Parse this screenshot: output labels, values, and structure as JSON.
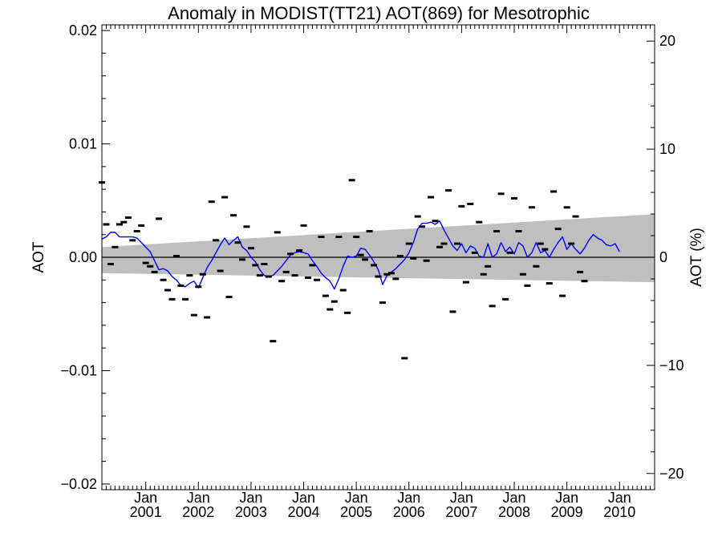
{
  "chart_data": {
    "type": "scatter",
    "title": "Anomaly in MODIST(TT21) AOT(869) for Mesotrophic",
    "ylabel": "AOT",
    "ylabel_right": "AOT (%)",
    "ylim": [
      -0.0205,
      0.0205
    ],
    "ylim_right": [
      -21.5,
      21.5
    ],
    "xlim": [
      "2000-03-01",
      "2010-09-01"
    ],
    "y_ticks": [
      "0.02",
      "0.01",
      "0.00",
      "−0.01",
      "−0.02"
    ],
    "y_tick_values": [
      0.02,
      0.01,
      0.0,
      -0.01,
      -0.02
    ],
    "y_right_ticks": [
      "20",
      "10",
      "0",
      "−10",
      "−20"
    ],
    "y_right_tick_values": [
      20,
      10,
      0,
      -10,
      -20
    ],
    "x_tick_labels": [
      {
        "month": "Jan",
        "year": "2001",
        "date": "2001-01-01"
      },
      {
        "month": "Jan",
        "year": "2002",
        "date": "2002-01-01"
      },
      {
        "month": "Jan",
        "year": "2003",
        "date": "2003-01-01"
      },
      {
        "month": "Jan",
        "year": "2004",
        "date": "2004-01-01"
      },
      {
        "month": "Jan",
        "year": "2005",
        "date": "2005-01-01"
      },
      {
        "month": "Jan",
        "year": "2006",
        "date": "2006-01-01"
      },
      {
        "month": "Jan",
        "year": "2007",
        "date": "2007-01-01"
      },
      {
        "month": "Jan",
        "year": "2008",
        "date": "2008-01-01"
      },
      {
        "month": "Jan",
        "year": "2009",
        "date": "2009-01-01"
      },
      {
        "month": "Jan",
        "year": "2010",
        "date": "2010-01-01"
      }
    ],
    "zero_line": true,
    "confidence_band": {
      "x": [
        "2000-03-01",
        "2010-09-01"
      ],
      "upper": [
        0.0009,
        0.0038
      ],
      "lower": [
        -0.0014,
        -0.0022
      ]
    },
    "series": [
      {
        "type": "scatter",
        "marker": "dash",
        "color": "#000000",
        "start": "2000-03",
        "values": [
          0.0066,
          0.0029,
          -0.0006,
          0.0009,
          0.0029,
          0.0031,
          0.0035,
          0.0015,
          0.0023,
          0.0028,
          -0.0005,
          -0.0008,
          -0.0013,
          0.0034,
          -0.002,
          -0.0029,
          -0.0037,
          0.0001,
          -0.0025,
          -0.0037,
          -0.0016,
          -0.0051,
          -0.0026,
          -0.0015,
          -0.0053,
          0.0049,
          0.0015,
          -0.0012,
          0.0053,
          -0.0035,
          0.0037,
          0.0013,
          -0.0002,
          0.0027,
          0.0008,
          -0.0007,
          -0.0016,
          -0.0006,
          -0.0017,
          -0.0074,
          0.0022,
          -0.0021,
          -0.0013,
          0.0003,
          -0.0016,
          0.0006,
          0.0028,
          -0.0018,
          -0.0007,
          -0.002,
          0.0018,
          -0.0034,
          -0.0046,
          -0.0039,
          0.0018,
          -0.0029,
          -0.0049,
          0.0068,
          0.0018,
          0.0002,
          -0.0002,
          0.0023,
          -0.0007,
          -0.0017,
          -0.004,
          -0.0015,
          -0.0014,
          -0.0019,
          0.0001,
          -0.0089,
          0.0012,
          -0.0001,
          0.0036,
          0.0027,
          -0.0003,
          0.0053,
          0.0032,
          0.0009,
          0.0012,
          0.0059,
          -0.0048,
          0.0012,
          0.0045,
          -0.0022,
          0.0047,
          0.0004,
          0.0031,
          -0.0015,
          -0.0008,
          -0.0043,
          0.0023,
          0.0056,
          -0.0037,
          0.0004,
          0.0052,
          0.0023,
          -0.0015,
          -0.0025,
          0.0044,
          -0.0008,
          0.0012,
          0.0007,
          -0.0023,
          0.0058,
          0.0025,
          -0.0034,
          0.0044,
          0.0012,
          0.0036,
          -0.0013,
          -0.0021
        ]
      },
      {
        "type": "line",
        "color": "#0000ff",
        "start": "2000-03",
        "values": [
          0.0016,
          0.0018,
          0.0022,
          0.0022,
          0.0018,
          0.0018,
          0.0018,
          0.0018,
          0.0017,
          0.0013,
          0.0009,
          0.0005,
          -0.0003,
          -0.0011,
          -0.001,
          -0.0012,
          -0.0017,
          -0.002,
          -0.0025,
          -0.0026,
          -0.0023,
          -0.0021,
          -0.0027,
          -0.0018,
          -0.0009,
          -0.0003,
          0.0004,
          0.0011,
          0.0017,
          0.0011,
          0.0015,
          0.0018,
          0.0009,
          0.0006,
          0.0,
          -0.0004,
          -0.0011,
          -0.0016,
          -0.0017,
          -0.0016,
          -0.0012,
          -0.0008,
          -0.0003,
          0.0002,
          0.0004,
          0.0005,
          0.0004,
          0.0003,
          -0.0003,
          -0.0008,
          -0.0014,
          -0.0018,
          -0.0021,
          -0.0028,
          -0.0019,
          -0.0008,
          0.0001,
          0.0,
          0.0001,
          0.0008,
          0.0007,
          0.0002,
          -0.0004,
          -0.0011,
          -0.0024,
          -0.0016,
          -0.0013,
          -0.001,
          -0.0006,
          -0.0002,
          0.0004,
          0.0013,
          0.0025,
          0.003,
          0.003,
          0.0031,
          0.0029,
          0.0032,
          0.0024,
          0.0017,
          0.001,
          0.0006,
          0.0012,
          0.0004,
          0.001,
          0.0008,
          0.0001,
          0.0,
          0.0012,
          0.0,
          0.0003,
          0.0013,
          0.0005,
          0.0009,
          0.0003,
          0.0013,
          0.001,
          0.0,
          0.0004,
          0.0013,
          0.0004,
          0.0006,
          0.0,
          0.0007,
          0.0013,
          0.0018,
          0.0007,
          0.0012,
          0.0007,
          0.0003,
          0.0008,
          0.0015,
          0.002,
          0.0017,
          0.0015,
          0.0011,
          0.001,
          0.0012,
          0.0005
        ]
      }
    ]
  }
}
